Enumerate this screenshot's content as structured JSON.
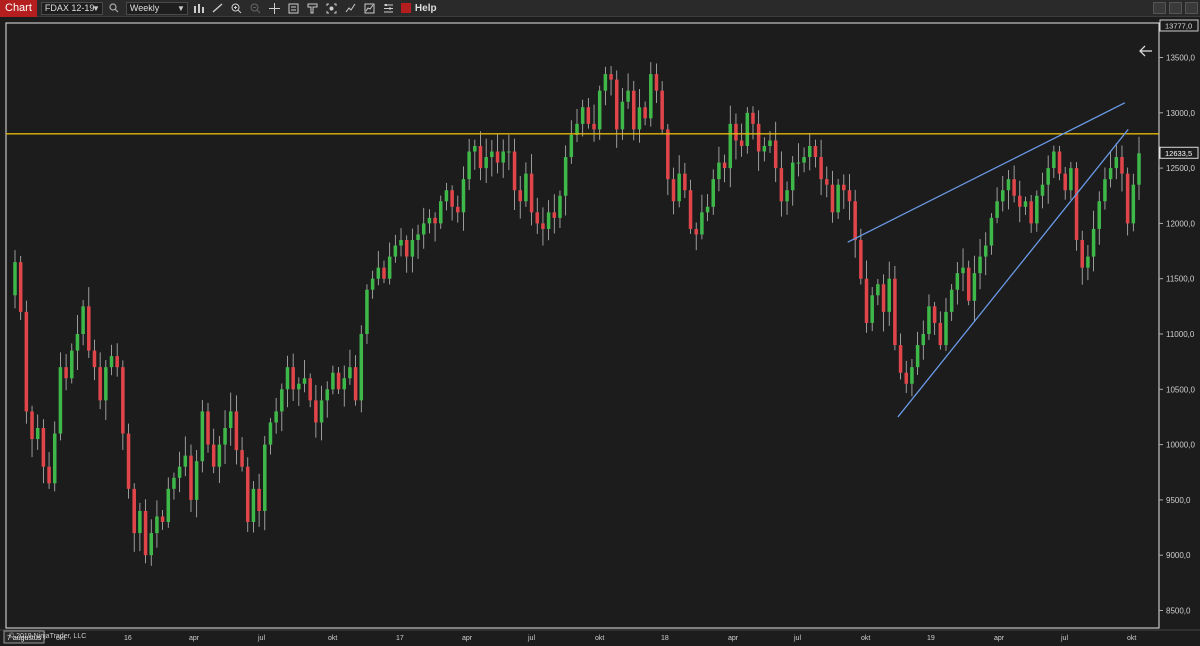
{
  "toolbar": {
    "chart_tab": "Chart",
    "instrument": "FDAX 12-19",
    "period": "Weekly",
    "help": "Help",
    "icons": [
      "bars-type-icon",
      "draw-tool-icon",
      "zoom-in-icon",
      "zoom-out-icon",
      "crosshair-icon",
      "data-box-icon",
      "templates-icon",
      "screenshot-icon",
      "strategies-icon",
      "indicators-icon",
      "properties-icon",
      "alerts-icon"
    ]
  },
  "colors": {
    "background": "#1c1c1c",
    "up_candle": "#3fb84a",
    "down_candle": "#e0454a",
    "wick": "#bbbbbb",
    "horizontal_line": "#e3b60e",
    "trendline": "#6b9be8"
  },
  "chart_data": {
    "type": "candlestick",
    "instrument": "FDAX 12-19",
    "period": "Weekly",
    "ylim": [
      8330,
      13800
    ],
    "y_ticks": [
      "13500,0",
      "13000,0",
      "12500,0",
      "12000,0",
      "11500,0",
      "11000,0",
      "10500,0",
      "10000,0",
      "9500,0",
      "9000,0",
      "8500,0"
    ],
    "y_tick_values": [
      13500,
      13000,
      12500,
      12000,
      11500,
      11000,
      10500,
      10000,
      9500,
      9000,
      8500
    ],
    "x_ticks": [
      "7 augustus",
      "okt",
      "16",
      "apr",
      "jul",
      "okt",
      "17",
      "apr",
      "jul",
      "okt",
      "18",
      "apr",
      "jul",
      "okt",
      "19",
      "apr",
      "jul",
      "okt"
    ],
    "top_label": "13777,0",
    "last_price_label": "12633,5",
    "horizontal_line": 12810,
    "trendlines": [
      {
        "from": [
          0.725,
          11830
        ],
        "to": [
          0.968,
          13090
        ]
      },
      {
        "from": [
          0.769,
          10250
        ],
        "to": [
          0.971,
          12850
        ]
      }
    ],
    "closes": [
      11650,
      11200,
      10300,
      10050,
      10150,
      9800,
      9650,
      10100,
      10700,
      10600,
      10850,
      11000,
      11250,
      10850,
      10700,
      10400,
      10700,
      10800,
      10700,
      10100,
      9600,
      9200,
      9400,
      9000,
      9200,
      9350,
      9300,
      9600,
      9700,
      9800,
      9900,
      9500,
      9850,
      10300,
      10000,
      9800,
      10000,
      10150,
      10300,
      9950,
      9800,
      9300,
      9600,
      9400,
      10000,
      10200,
      10300,
      10500,
      10700,
      10500,
      10550,
      10600,
      10400,
      10200,
      10400,
      10500,
      10650,
      10500,
      10600,
      10700,
      10400,
      11000,
      11400,
      11500,
      11600,
      11500,
      11700,
      11800,
      11850,
      11700,
      11850,
      11900,
      12000,
      12050,
      12000,
      12200,
      12300,
      12150,
      12100,
      12400,
      12650,
      12700,
      12500,
      12600,
      12650,
      12550,
      12650,
      12650,
      12300,
      12200,
      12450,
      12100,
      12000,
      11950,
      12100,
      12050,
      12250,
      12600,
      12800,
      12900,
      13050,
      12900,
      12850,
      13200,
      13350,
      13300,
      12850,
      13100,
      13200,
      12850,
      13050,
      12950,
      13350,
      13200,
      12850,
      12400,
      12200,
      12450,
      12300,
      11950,
      11900,
      12100,
      12150,
      12400,
      12550,
      12500,
      12900,
      12750,
      12700,
      13000,
      12900,
      12650,
      12700,
      12750,
      12500,
      12200,
      12300,
      12550,
      12550,
      12600,
      12700,
      12600,
      12400,
      12350,
      12100,
      12350,
      12300,
      12200,
      11850,
      11500,
      11100,
      11350,
      11450,
      11200,
      11500,
      10900,
      10650,
      10550,
      10700,
      10900,
      11000,
      11250,
      11100,
      10900,
      11200,
      11400,
      11550,
      11600,
      11300,
      11550,
      11700,
      11800,
      12050,
      12200,
      12300,
      12400,
      12250,
      12150,
      12200,
      12000,
      12250,
      12350,
      12500,
      12650,
      12450,
      12300,
      12500,
      11850,
      11600,
      11700,
      11950,
      12200,
      12400,
      12500,
      12600,
      12450,
      12000,
      12350,
      12634
    ]
  },
  "copyright": "© 2019 NinjaTrader, LLC"
}
